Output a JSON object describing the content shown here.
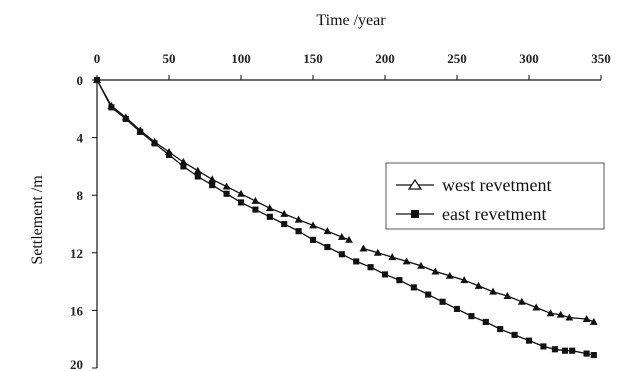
{
  "chart_data": {
    "type": "line",
    "title": "",
    "xlabel": "Time /year",
    "ylabel": "Settlement /m",
    "xlim": [
      0,
      350
    ],
    "ylim": [
      0,
      20
    ],
    "x_axis_position": "top",
    "y_axis_inverted": true,
    "grid": false,
    "legend_position": "right-center",
    "x_ticks": [
      "0",
      "50",
      "100",
      "150",
      "200",
      "250",
      "300",
      "350"
    ],
    "y_ticks": [
      "0",
      "4",
      "8",
      "12",
      "16",
      "20"
    ],
    "series": [
      {
        "name": "west revetment",
        "marker": "triangle-open",
        "color": "#111111",
        "points": [
          [
            0,
            0
          ],
          [
            10,
            1.8
          ],
          [
            20,
            2.6
          ],
          [
            30,
            3.5
          ],
          [
            40,
            4.3
          ],
          [
            50,
            5.0
          ],
          [
            60,
            5.7
          ],
          [
            70,
            6.3
          ],
          [
            80,
            6.9
          ],
          [
            90,
            7.4
          ],
          [
            100,
            7.9
          ],
          [
            110,
            8.4
          ],
          [
            120,
            8.9
          ],
          [
            130,
            9.3
          ],
          [
            140,
            9.7
          ],
          [
            150,
            10.1
          ],
          [
            160,
            10.5
          ],
          [
            170,
            10.9
          ],
          [
            175,
            11.1
          ],
          [
            185,
            11.7
          ],
          [
            195,
            12.0
          ],
          [
            205,
            12.3
          ],
          [
            215,
            12.6
          ],
          [
            225,
            12.9
          ],
          [
            235,
            13.3
          ],
          [
            245,
            13.6
          ],
          [
            255,
            13.9
          ],
          [
            265,
            14.3
          ],
          [
            275,
            14.7
          ],
          [
            285,
            15.0
          ],
          [
            295,
            15.4
          ],
          [
            305,
            15.8
          ],
          [
            315,
            16.2
          ],
          [
            322,
            16.3
          ],
          [
            328,
            16.5
          ],
          [
            340,
            16.6
          ],
          [
            345,
            16.8
          ]
        ]
      },
      {
        "name": "east revetment",
        "marker": "square-filled",
        "color": "#111111",
        "points": [
          [
            0,
            0
          ],
          [
            10,
            1.9
          ],
          [
            20,
            2.7
          ],
          [
            30,
            3.6
          ],
          [
            40,
            4.4
          ],
          [
            50,
            5.2
          ],
          [
            60,
            6.0
          ],
          [
            70,
            6.7
          ],
          [
            80,
            7.3
          ],
          [
            90,
            7.9
          ],
          [
            100,
            8.5
          ],
          [
            110,
            9.0
          ],
          [
            120,
            9.5
          ],
          [
            130,
            10.0
          ],
          [
            140,
            10.5
          ],
          [
            150,
            11.1
          ],
          [
            160,
            11.6
          ],
          [
            170,
            12.1
          ],
          [
            180,
            12.6
          ],
          [
            190,
            13.0
          ],
          [
            200,
            13.5
          ],
          [
            210,
            13.9
          ],
          [
            220,
            14.4
          ],
          [
            230,
            14.9
          ],
          [
            240,
            15.4
          ],
          [
            250,
            15.9
          ],
          [
            260,
            16.4
          ],
          [
            270,
            16.8
          ],
          [
            280,
            17.3
          ],
          [
            290,
            17.7
          ],
          [
            300,
            18.1
          ],
          [
            310,
            18.5
          ],
          [
            318,
            18.7
          ],
          [
            325,
            18.8
          ],
          [
            330,
            18.8
          ],
          [
            340,
            19.0
          ],
          [
            345,
            19.1
          ]
        ]
      }
    ]
  }
}
